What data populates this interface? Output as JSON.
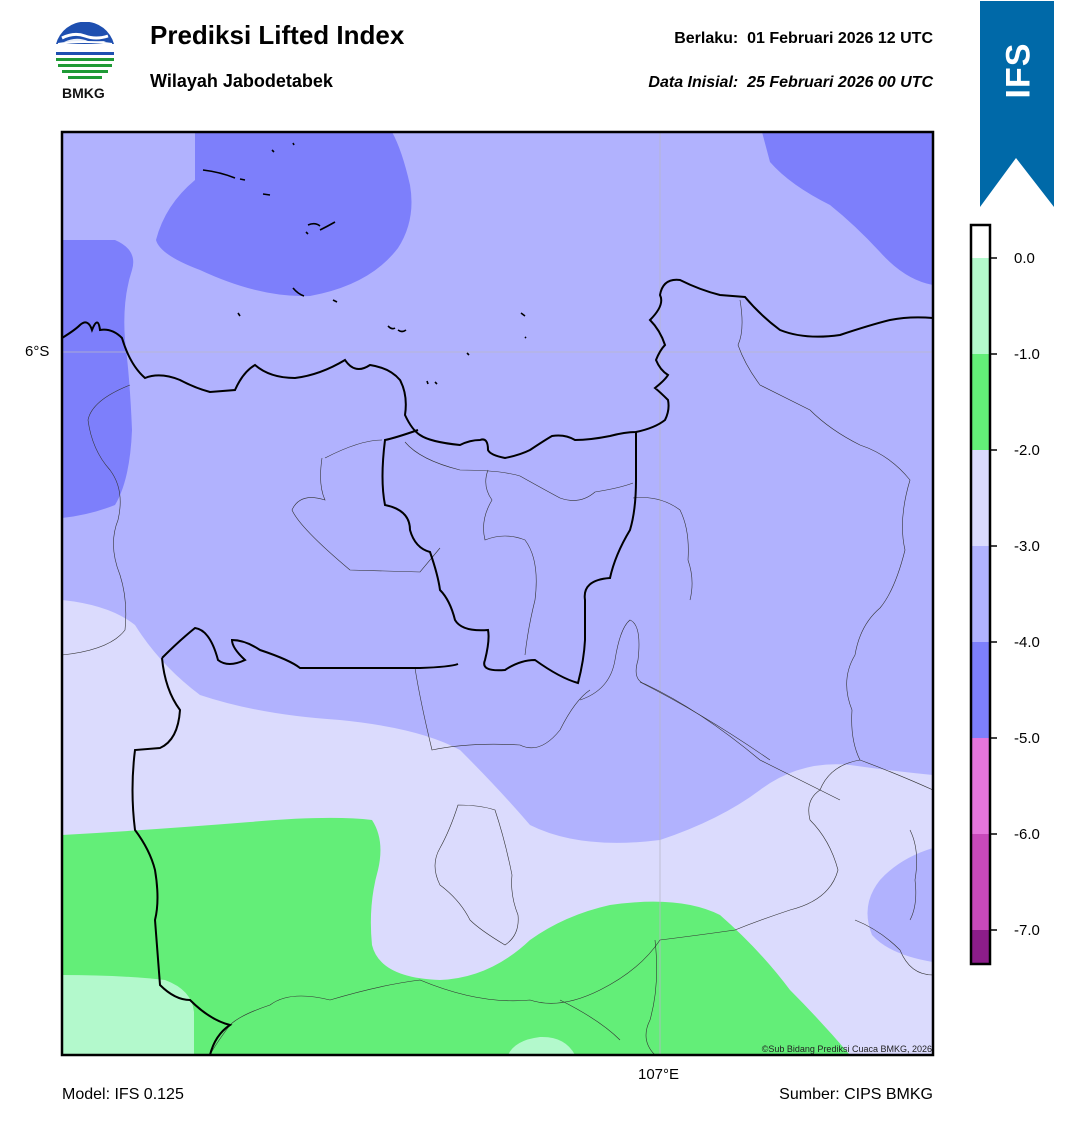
{
  "header": {
    "title": "Prediksi Lifted Index",
    "region": "Wilayah Jabodetabek",
    "valid_prefix": "Berlaku:",
    "valid_time": "01 Februari 2026 12 UTC",
    "init_prefix": "Data Inisial:",
    "init_time": "25 Februari 2026 00 UTC"
  },
  "logo": {
    "text": "BMKG",
    "icon": "bmkg-logo"
  },
  "badge": {
    "text": "IFS",
    "color": "#0069A8"
  },
  "map": {
    "lat_label": "6°S",
    "lon_label": "107°E",
    "credit": "©Sub Bidang Prediksi Cuaca BMKG, 2026"
  },
  "colorbar": {
    "ticks": [
      "0.0",
      "-1.0",
      "-2.0",
      "-3.0",
      "-4.0",
      "-5.0",
      "-6.0",
      "-7.0"
    ],
    "colors": {
      "above_0": "#ffffff",
      "0_to_-1": "#B3F9CC",
      "-1_to_-2": "#63EE78",
      "-2_to_-3": "#DBDBFD",
      "-3_to_-4": "#B1B2FE",
      "-4_to_-5": "#7D7FFB",
      "-5_to_-6": "#E575DC",
      "-6_to_-7": "#C849BA",
      "below_-7": "#8C1D8A"
    }
  },
  "footer": {
    "model": "Model: IFS 0.125",
    "source": "Sumber: CIPS BMKG"
  }
}
